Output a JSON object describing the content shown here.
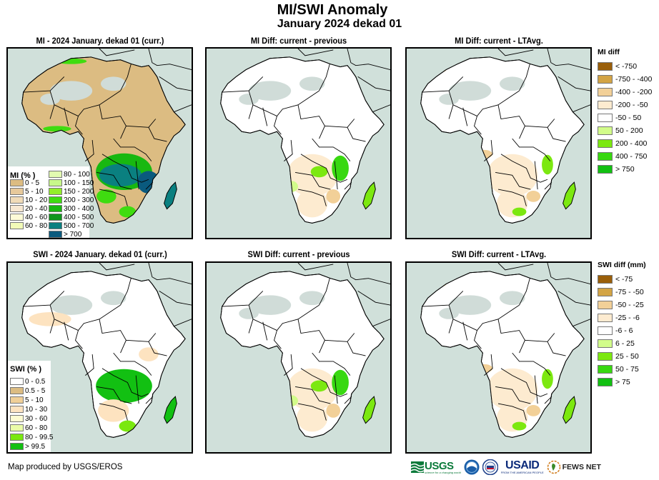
{
  "header": {
    "title": "MI/SWI Anomaly",
    "subtitle": "January 2024 dekad 01"
  },
  "panels": [
    {
      "title": "MI - 2024 January. dekad 01 (curr.)",
      "variable": "MI",
      "type": "current"
    },
    {
      "title": "MI Diff: current - previous",
      "variable": "MI",
      "type": "diff-previous"
    },
    {
      "title": "MI Diff: current - LTAvg.",
      "variable": "MI",
      "type": "diff-ltavg"
    },
    {
      "title": "SWI - 2024 January. dekad 01 (curr.)",
      "variable": "SWI",
      "type": "current"
    },
    {
      "title": "SWI Diff: current - previous",
      "variable": "SWI",
      "type": "diff-previous"
    },
    {
      "title": "SWI Diff: current - LTAvg.",
      "variable": "SWI",
      "type": "diff-ltavg"
    }
  ],
  "legends": {
    "mi_percent": {
      "title": "MI (% )",
      "items": [
        {
          "label": "0 - 5",
          "color": "#dcbc82"
        },
        {
          "label": "5 - 10",
          "color": "#e7c99b"
        },
        {
          "label": "10 - 20",
          "color": "#f0dbb8"
        },
        {
          "label": "20 - 40",
          "color": "#f7e8d2"
        },
        {
          "label": "40 - 60",
          "color": "#fdfbd7"
        },
        {
          "label": "60 - 80",
          "color": "#f2fbb8"
        },
        {
          "label": "80 - 100",
          "color": "#e2fbb0"
        },
        {
          "label": "100 - 150",
          "color": "#c8f88a"
        },
        {
          "label": "150 - 200",
          "color": "#92ee2a"
        },
        {
          "label": "200 - 300",
          "color": "#3fdc10"
        },
        {
          "label": "300 - 400",
          "color": "#18b810"
        },
        {
          "label": "400 - 500",
          "color": "#10961e"
        },
        {
          "label": "500 - 700",
          "color": "#0a8080"
        },
        {
          "label": "> 700",
          "color": "#0a5a7e"
        }
      ]
    },
    "swi_percent": {
      "title": "SWI (% )",
      "items": [
        {
          "label": "0 - 0.5",
          "color": "#ffffff"
        },
        {
          "label": "0.5 - 5",
          "color": "#dcbc82"
        },
        {
          "label": "5 - 10",
          "color": "#f0cf98"
        },
        {
          "label": "10 - 30",
          "color": "#fde3c0"
        },
        {
          "label": "30 - 60",
          "color": "#fdfbd2"
        },
        {
          "label": "60 - 80",
          "color": "#eafca8"
        },
        {
          "label": "80 - 99.5",
          "color": "#7ae810"
        },
        {
          "label": "> 99.5",
          "color": "#12c012"
        }
      ]
    },
    "mi_diff": {
      "title": "MI diff",
      "items": [
        {
          "label": "< -750",
          "color": "#9a5f0a"
        },
        {
          "label": "-750 - -400",
          "color": "#d3a445"
        },
        {
          "label": "-400 - -200",
          "color": "#f2d098"
        },
        {
          "label": "-200 - -50",
          "color": "#fdebd0"
        },
        {
          "label": "-50 - 50",
          "color": "#ffffff"
        },
        {
          "label": "50 - 200",
          "color": "#d2fc8a"
        },
        {
          "label": "200 - 400",
          "color": "#7ce810"
        },
        {
          "label": "400 - 750",
          "color": "#38d810"
        },
        {
          "label": "> 750",
          "color": "#12c012"
        }
      ]
    },
    "swi_diff": {
      "title": "SWI diff (mm)",
      "items": [
        {
          "label": "< -75",
          "color": "#9a5f0a"
        },
        {
          "label": "-75 - -50",
          "color": "#d3a445"
        },
        {
          "label": "-50 - -25",
          "color": "#f2d098"
        },
        {
          "label": "-25 - -6",
          "color": "#fdebd0"
        },
        {
          "label": "-6 - 6",
          "color": "#ffffff"
        },
        {
          "label": "6 - 25",
          "color": "#d2fc8a"
        },
        {
          "label": "25 - 50",
          "color": "#7ce810"
        },
        {
          "label": "50 - 75",
          "color": "#38d810"
        },
        {
          "label": "> 75",
          "color": "#12c012"
        }
      ]
    }
  },
  "colors": {
    "ocean": "#d0e0da",
    "nodata": "#d0dcd8",
    "border": "#000000"
  },
  "footer": {
    "credit": "Map produced by USGS/EROS",
    "logos": [
      {
        "name": "USGS",
        "text": "USGS",
        "tagline": "science for a changing world"
      },
      {
        "name": "NOAA",
        "text": "NOAA"
      },
      {
        "name": "USAID-seal",
        "text": "USAID"
      },
      {
        "name": "USAID",
        "text": "USAID",
        "tagline": "FROM THE AMERICAN PEOPLE"
      },
      {
        "name": "FEWS NET",
        "text": "FEWS NET"
      }
    ]
  }
}
